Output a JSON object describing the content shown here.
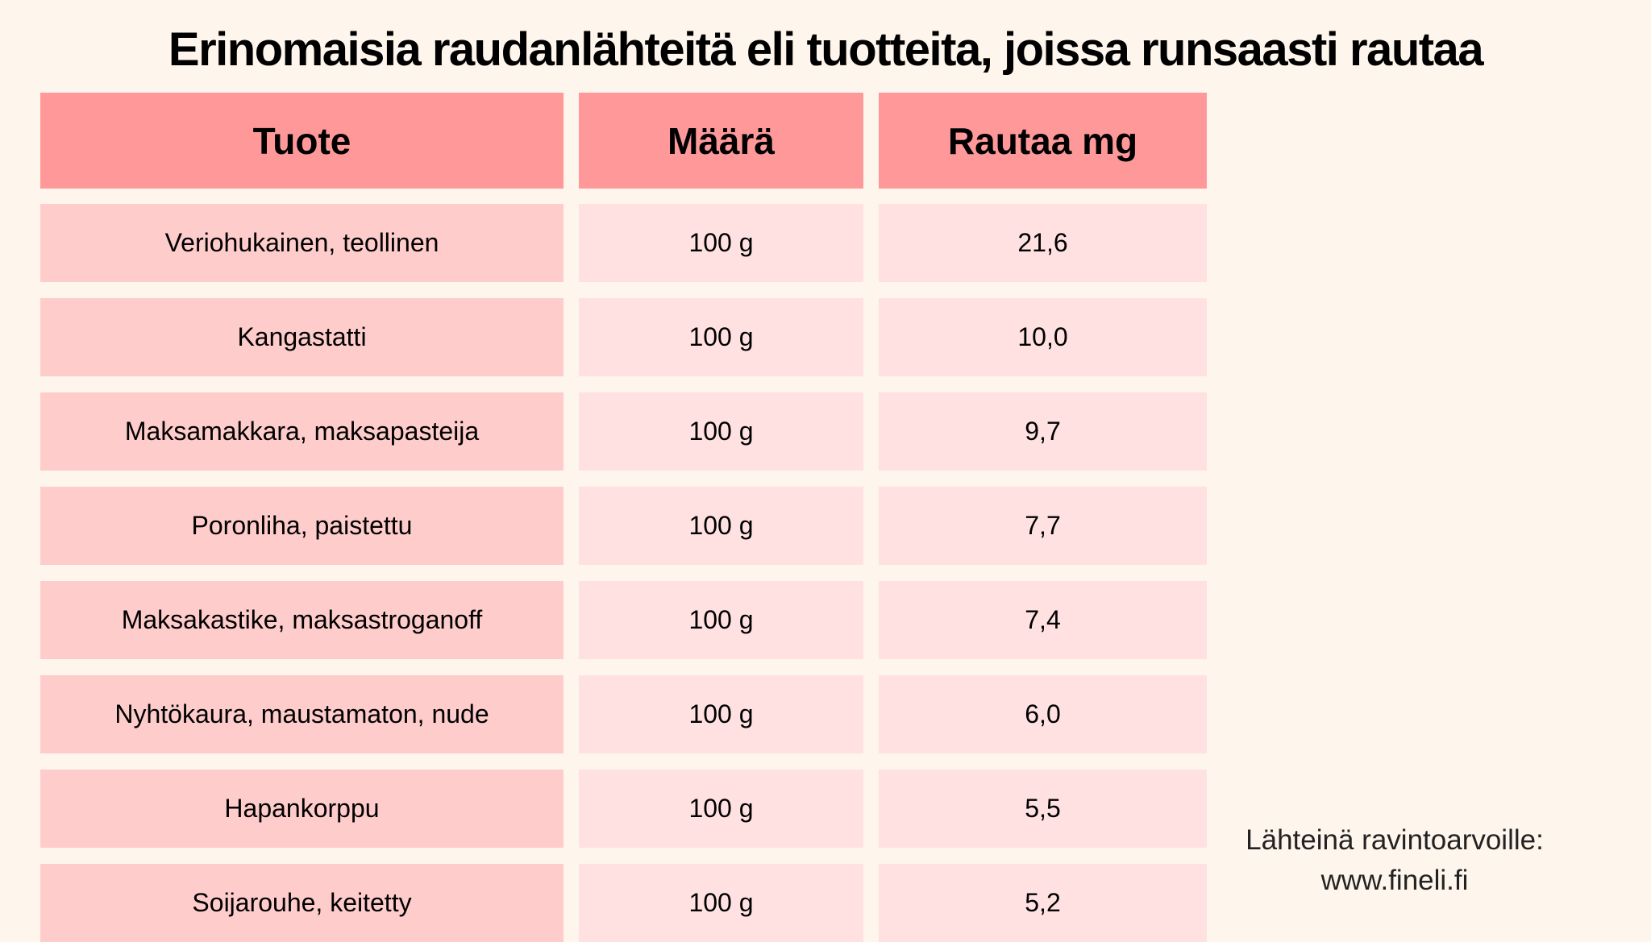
{
  "title": "Erinomaisia raudanlähteitä eli tuotteita, joissa runsaasti rautaa",
  "table": {
    "headers": [
      "Tuote",
      "Määrä",
      "Rautaa mg"
    ],
    "rows": [
      [
        "Veriohukainen, teollinen",
        "100 g",
        "21,6"
      ],
      [
        "Kangastatti",
        "100 g",
        "10,0"
      ],
      [
        "Maksamakkara, maksapasteija",
        "100 g",
        "9,7"
      ],
      [
        "Poronliha, paistettu",
        "100 g",
        "7,7"
      ],
      [
        "Maksakastike, maksastroganoff",
        "100 g",
        "7,4"
      ],
      [
        "Nyhtökaura, maustamaton, nude",
        "100 g",
        "6,0"
      ],
      [
        "Hapankorppu",
        "100 g",
        "5,5"
      ],
      [
        "Soijarouhe, keitetty",
        "100 g",
        "5,2"
      ]
    ]
  },
  "source": {
    "line1": "Lähteinä ravintoarvoille:",
    "line2": "www.fineli.fi"
  },
  "colors": {
    "background": "#fef5ec",
    "header": "#ff9999",
    "product_cell": "#ffcccc",
    "value_cell": "#ffe1e1"
  }
}
